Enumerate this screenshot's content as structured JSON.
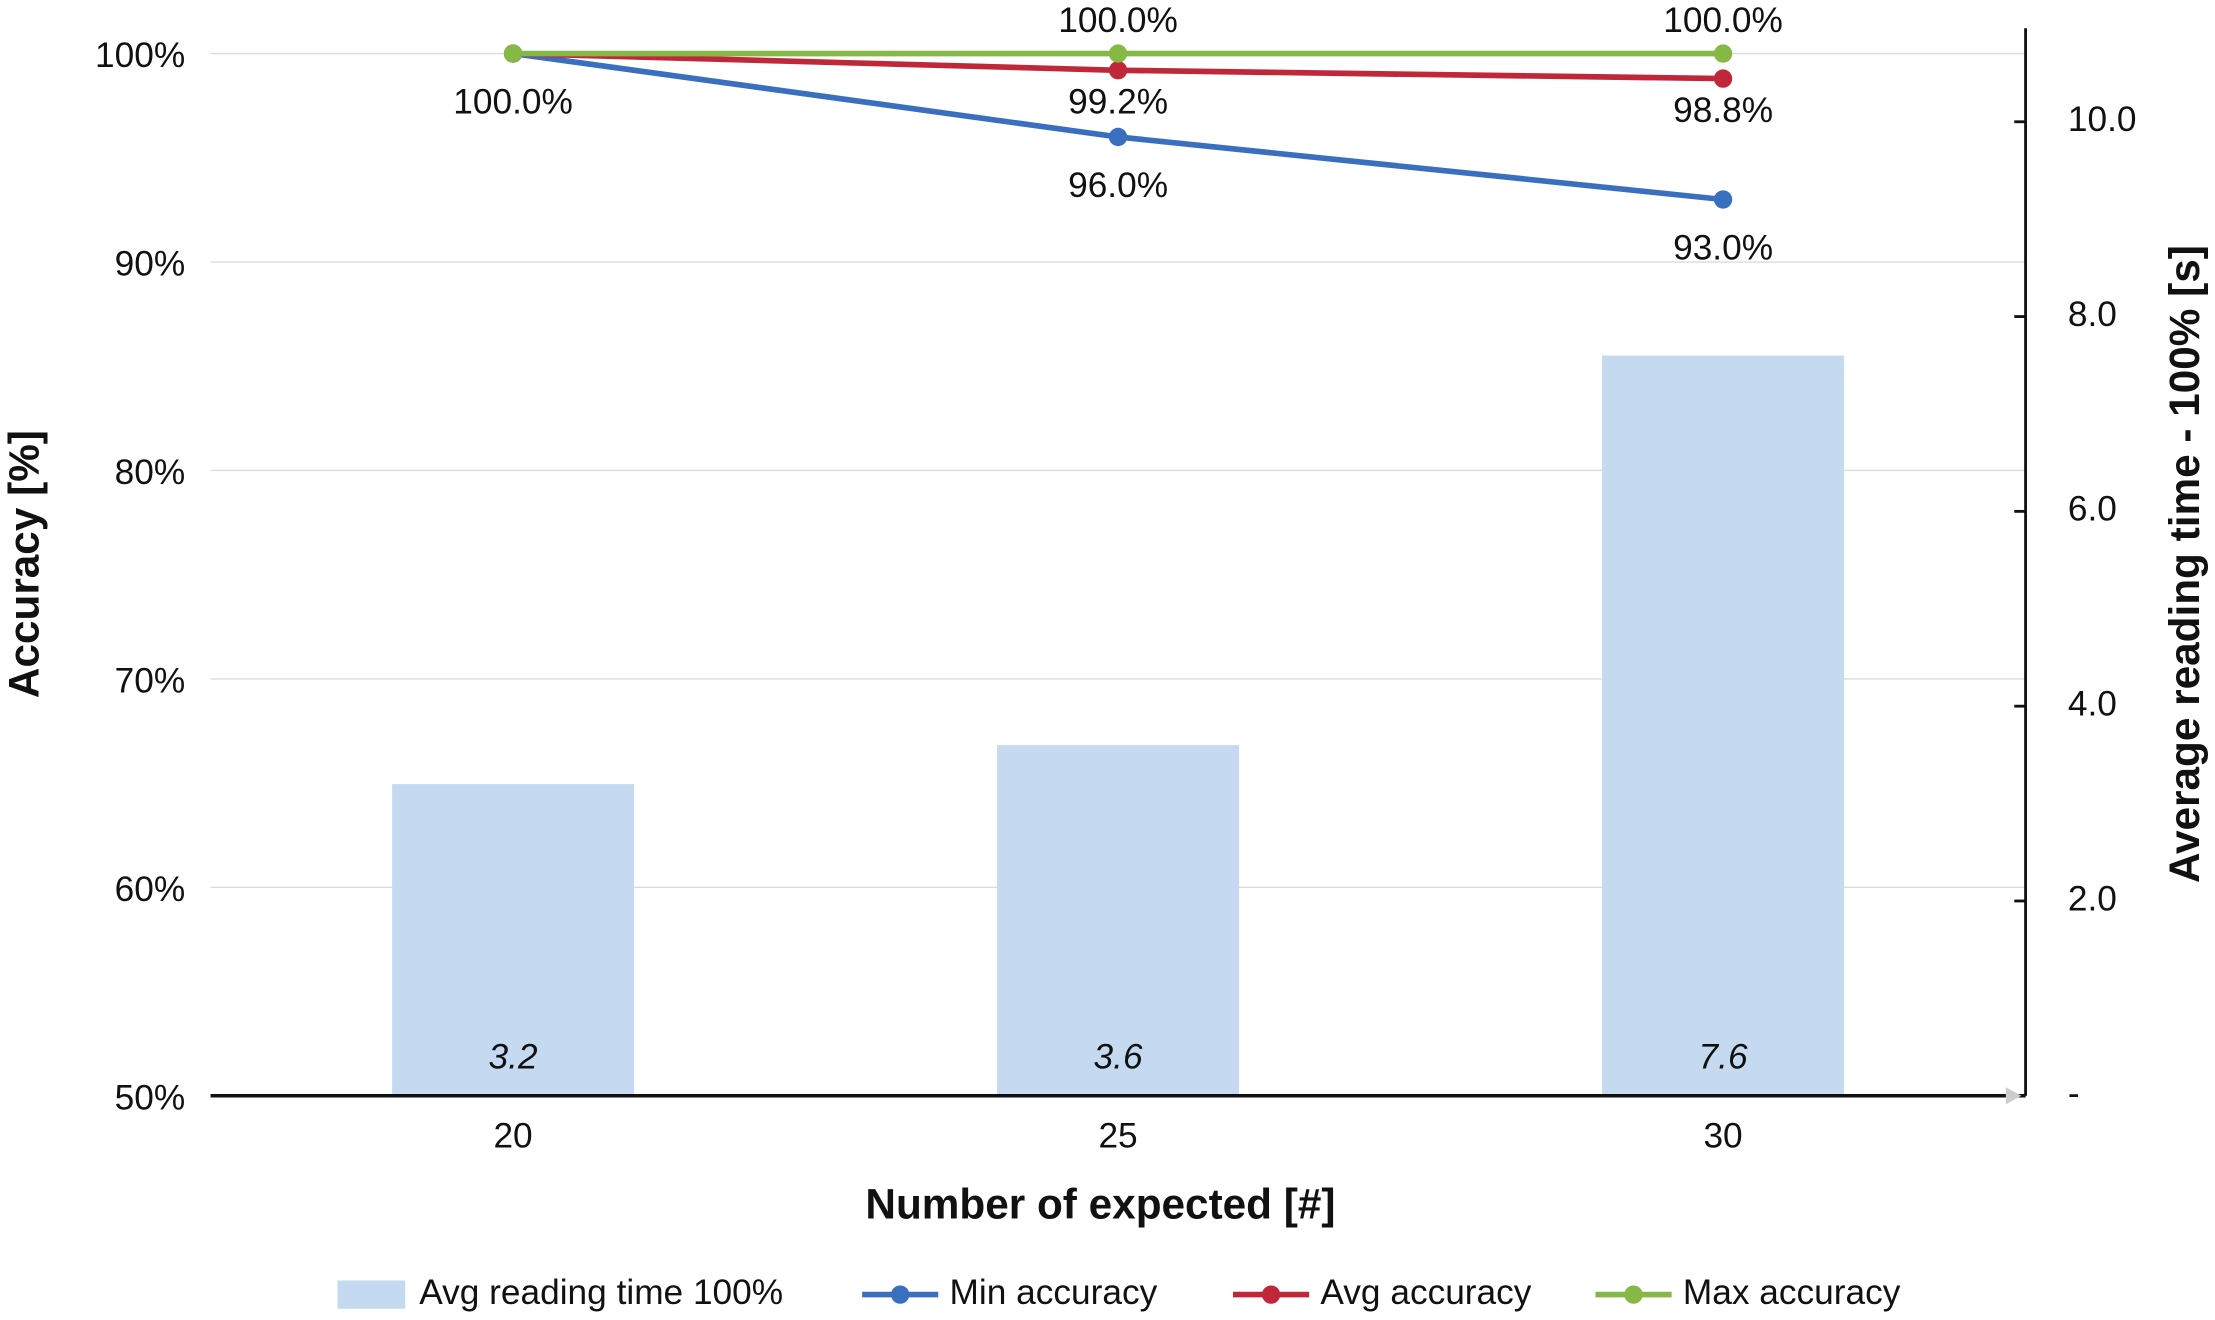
{
  "chart_data": {
    "type": "combo",
    "x_label": "Number of expected [#]",
    "y_label": "Accuracy [%]",
    "y2_label": "Average reading time - 100% [s]",
    "categories": [
      "20",
      "25",
      "30"
    ],
    "ylim": [
      50,
      100
    ],
    "yticks": [
      {
        "value": 50,
        "label": "50%"
      },
      {
        "value": 60,
        "label": "60%"
      },
      {
        "value": 70,
        "label": "70%"
      },
      {
        "value": 80,
        "label": "80%"
      },
      {
        "value": 90,
        "label": "90%"
      },
      {
        "value": 100,
        "label": "100%"
      }
    ],
    "y2lim": [
      0,
      10.7
    ],
    "y2ticks": [
      {
        "value": 0,
        "label": "-"
      },
      {
        "value": 2,
        "label": "2.0"
      },
      {
        "value": 4,
        "label": "4.0"
      },
      {
        "value": 6,
        "label": "6.0"
      },
      {
        "value": 8,
        "label": "8.0"
      },
      {
        "value": 10,
        "label": "10.0"
      }
    ],
    "grid": true,
    "legend": "bottom",
    "series": [
      {
        "name": "Avg reading time 100%",
        "type": "bar",
        "axis": "y2",
        "color": "#c5d9f0",
        "values": [
          3.2,
          3.6,
          7.6
        ]
      },
      {
        "name": "Min accuracy",
        "type": "line",
        "color": "#3a6fc0",
        "values": [
          100,
          96,
          93
        ],
        "value_labels": [
          "100.0%",
          "96.0%",
          "93.0%"
        ]
      },
      {
        "name": "Avg accuracy",
        "type": "line",
        "color": "#c0283a",
        "values": [
          100,
          99.2,
          98.8
        ],
        "value_labels": [
          null,
          "99.2%",
          "98.8%"
        ]
      },
      {
        "name": "Max accuracy",
        "type": "line",
        "color": "#86b845",
        "values": [
          100,
          100,
          100
        ],
        "value_labels": [
          null,
          "100.0%",
          "100.0%"
        ]
      }
    ]
  }
}
